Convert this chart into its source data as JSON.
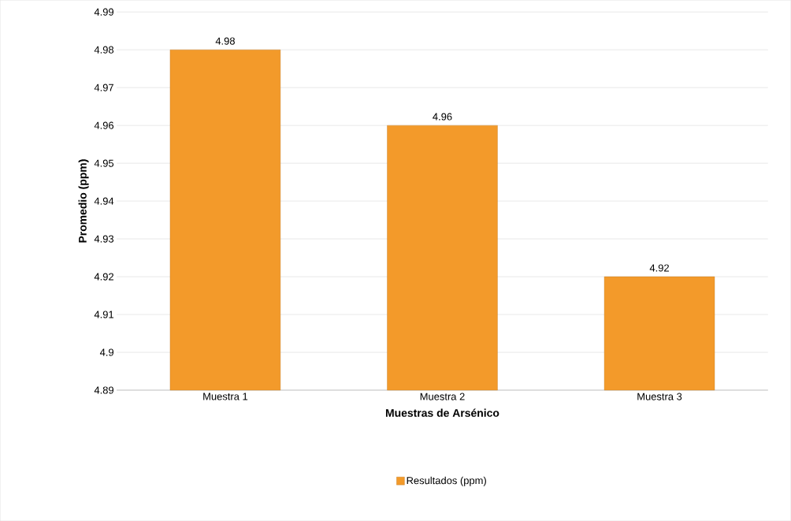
{
  "chart_data": {
    "type": "bar",
    "xlabel": "Muestras de Arsénico",
    "ylabel": "Promedio (ppm)",
    "categories": [
      "Muestra 1",
      "Muestra 2",
      "Muestra 3"
    ],
    "series": [
      {
        "name": "Resultados (ppm)",
        "color": "#f39a2a",
        "values": [
          4.98,
          4.96,
          4.92
        ]
      }
    ],
    "ylim": [
      4.89,
      4.99
    ],
    "yticks": [
      4.89,
      4.9,
      4.91,
      4.92,
      4.93,
      4.94,
      4.95,
      4.96,
      4.97,
      4.98,
      4.99
    ],
    "grid": "y",
    "legend": "bottom",
    "data_labels": true
  }
}
